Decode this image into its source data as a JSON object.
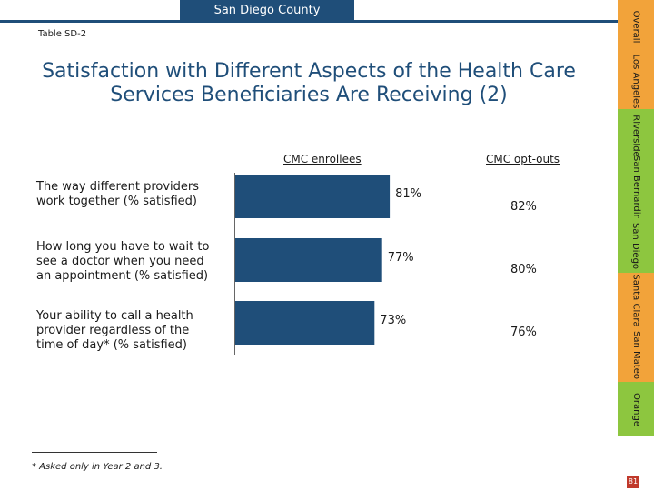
{
  "header": {
    "region": "San Diego County"
  },
  "table_id": "Table SD-2",
  "title": "Satisfaction with Different Aspects of the Health Care Services Beneficiaries Are Receiving (2)",
  "chart_data": {
    "type": "bar",
    "orientation": "horizontal",
    "categories": [
      "The way different providers work together (% satisfied)",
      "How long you have to wait to see a doctor when you need an appointment (% satisfied)",
      "Your ability to call a health provider regardless of the time of day* (% satisfied)"
    ],
    "series": [
      {
        "name": "CMC enrollees",
        "values": [
          81,
          77,
          73
        ],
        "labels": [
          "81%",
          "77%",
          "73%"
        ]
      },
      {
        "name": "CMC opt-outs",
        "values": [
          82,
          80,
          76
        ],
        "labels": [
          "82%",
          "80%",
          "76%"
        ]
      }
    ],
    "value_unit": "%",
    "colors": {
      "bar": "#1f4e79"
    }
  },
  "footnote": "* Asked only in Year 2 and 3.",
  "side_nav": [
    {
      "label": "Overall",
      "color": "#f2a33a"
    },
    {
      "label": "Los Angeles",
      "color": "#f2a33a"
    },
    {
      "label": "Riverside",
      "color": "#8dc63f"
    },
    {
      "label": "San Bernardino",
      "color": "#8dc63f"
    },
    {
      "label": "San Diego",
      "color": "#8dc63f"
    },
    {
      "label": "Santa Clara",
      "color": "#f2a33a"
    },
    {
      "label": "San Mateo",
      "color": "#f2a33a"
    },
    {
      "label": "Orange",
      "color": "#8dc63f"
    }
  ],
  "page_number": "81"
}
